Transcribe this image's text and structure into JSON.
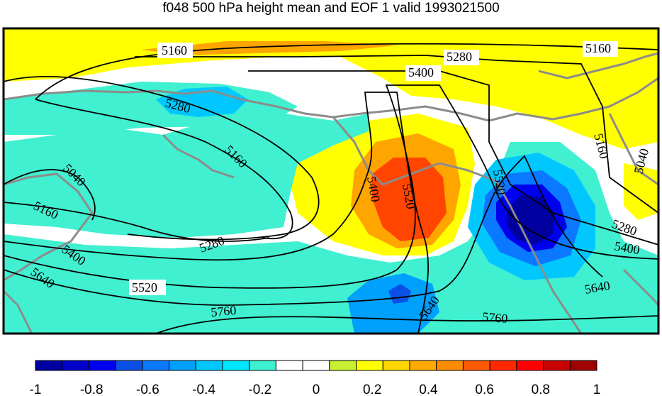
{
  "title": "f048 500 hPa height mean and EOF 1 valid 1993021500",
  "colors": {
    "coastline": "#8c8c8c",
    "contour": "#000000",
    "background": "#ffffff"
  },
  "contour_labels": [
    "5160",
    "5280",
    "5400",
    "5160",
    "5280",
    "5160",
    "5040",
    "5160",
    "5400",
    "5640",
    "5280",
    "5520",
    "5760",
    "5400",
    "5520",
    "5520",
    "5640",
    "5760",
    "5640",
    "5400",
    "5280",
    "5160",
    "5040"
  ],
  "colorbar": {
    "ticks": [
      "-1",
      "-0.8",
      "-0.6",
      "-0.4",
      "-0.2",
      "0",
      "0.2",
      "0.4",
      "0.6",
      "0.8",
      "1"
    ],
    "bins": [
      "#0000a0",
      "#0000c8",
      "#0000f0",
      "#0a50e6",
      "#0a78ff",
      "#00a0ff",
      "#00c8ff",
      "#00e6ff",
      "#3cf0d2",
      "#ffffff",
      "#ffffff",
      "#c8f032",
      "#ffff00",
      "#ffd700",
      "#ffaa00",
      "#ff8c00",
      "#ff5a00",
      "#ff2800",
      "#ff0000",
      "#c80000",
      "#a00000"
    ]
  },
  "legend_data": {
    "type": "colorbar",
    "range": [
      -1,
      1
    ],
    "tick_values": [
      -1,
      -0.8,
      -0.6,
      -0.4,
      -0.2,
      0,
      0.2,
      0.4,
      0.6,
      0.8,
      1
    ]
  }
}
